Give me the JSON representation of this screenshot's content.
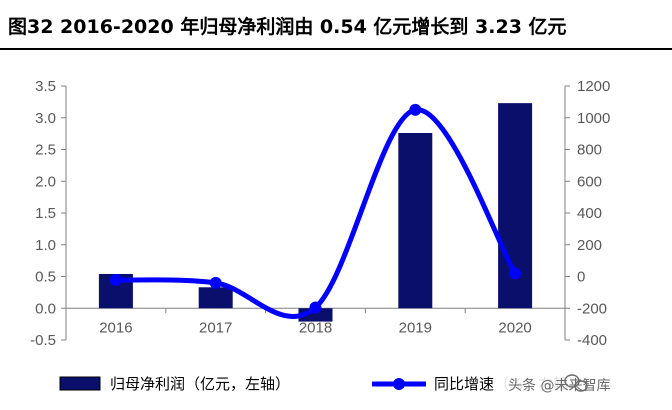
{
  "figure": {
    "title": "图32 2016-2020 年归母净利润由 0.54 亿元增长到 3.23 亿元"
  },
  "watermark": {
    "text": "头条 @未来智库",
    "icon": "wechat-logo"
  },
  "colors": {
    "bar": "#0a0f6b",
    "line": "#0000ff",
    "axis": "#808080"
  },
  "chart_data": {
    "type": "bar",
    "categories": [
      "2016",
      "2017",
      "2018",
      "2019",
      "2020"
    ],
    "series": [
      {
        "name": "归母净利润（亿元，左轴）",
        "type": "bar",
        "axis": "left",
        "values": [
          0.54,
          0.33,
          -0.21,
          2.76,
          3.23
        ]
      },
      {
        "name": "同比增速（%，右轴）",
        "type": "line",
        "axis": "right",
        "values": [
          -22,
          -40,
          -195,
          1050,
          20
        ]
      }
    ],
    "y_left": {
      "min": -0.5,
      "max": 3.5,
      "ticks": [
        "-0.5",
        "0.0",
        "0.5",
        "1.0",
        "1.5",
        "2.0",
        "2.5",
        "3.0",
        "3.5"
      ]
    },
    "y_right": {
      "min": -400,
      "max": 1200,
      "ticks": [
        "-400",
        "-200",
        "0",
        "200",
        "400",
        "600",
        "800",
        "1000",
        "1200"
      ]
    },
    "legend": {
      "position": "bottom",
      "entries": [
        "归母净利润（亿元，左轴）",
        "同比增速（%，右轴）"
      ]
    },
    "grid": false
  }
}
